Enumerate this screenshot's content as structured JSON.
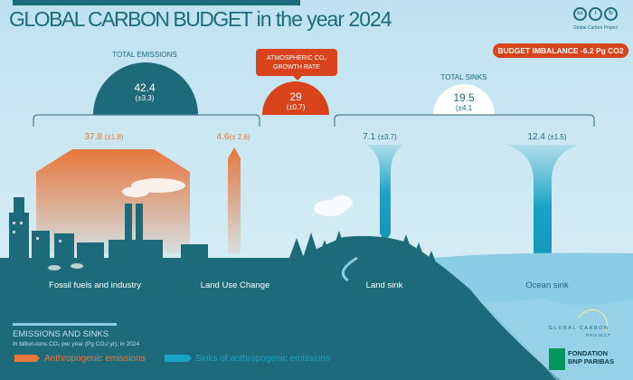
{
  "header": {
    "title_caps": "GLOBAL CARBON BUDGET",
    "title_rest": " in the year 2024",
    "credit": "Global Carbon Project",
    "license_icons": [
      "cc",
      "by",
      "sa"
    ]
  },
  "budget_imbalance": "BUDGET IMBALANCE -6.2 Pg CO2",
  "total_emissions": {
    "label": "TOTAL EMISSIONS",
    "value": "42.4",
    "uncertainty": "(±3.3)"
  },
  "atmospheric": {
    "label_line1": "ATMOSPHERIC CO₂",
    "label_line2": "GROWTH RATE",
    "value": "29",
    "uncertainty": "(±0.7)"
  },
  "total_sinks": {
    "label": "TOTAL SINKS",
    "value": "19.5",
    "uncertainty": "(±4.1"
  },
  "flows": [
    {
      "name": "Fossil fuels and industry",
      "value": "37.8",
      "uncertainty": "(±1.8)"
    },
    {
      "name": "Land Use Change",
      "value": "4.6",
      "uncertainty": "(± 2.6)"
    },
    {
      "name": "Land sink",
      "value": "7.1",
      "uncertainty": "(±3.7)"
    },
    {
      "name": "Ocean sink",
      "value": "12.4",
      "uncertainty": "(±1.5)"
    }
  ],
  "legend": {
    "title": "EMISSIONS AND SINKS",
    "subtitle": "In billion-tons CO₂ per year (Pg CO₂/ yr), in 2024",
    "emissions": "Anthropogenic emissions",
    "sinks": "Sinks of anthropogenic emissions"
  },
  "logos": {
    "gcp_line1": "GLOBAL CARBON",
    "gcp_line2": "PROJECT",
    "bnp_line1": "FONDATION",
    "bnp_line2": "BNP PARIBAS"
  },
  "colors": {
    "teal": "#1d6a7a",
    "orange": "#e8773c",
    "red": "#d9431c",
    "sink_blue": "#1aa3c6",
    "ocean": "#8ccde6"
  }
}
